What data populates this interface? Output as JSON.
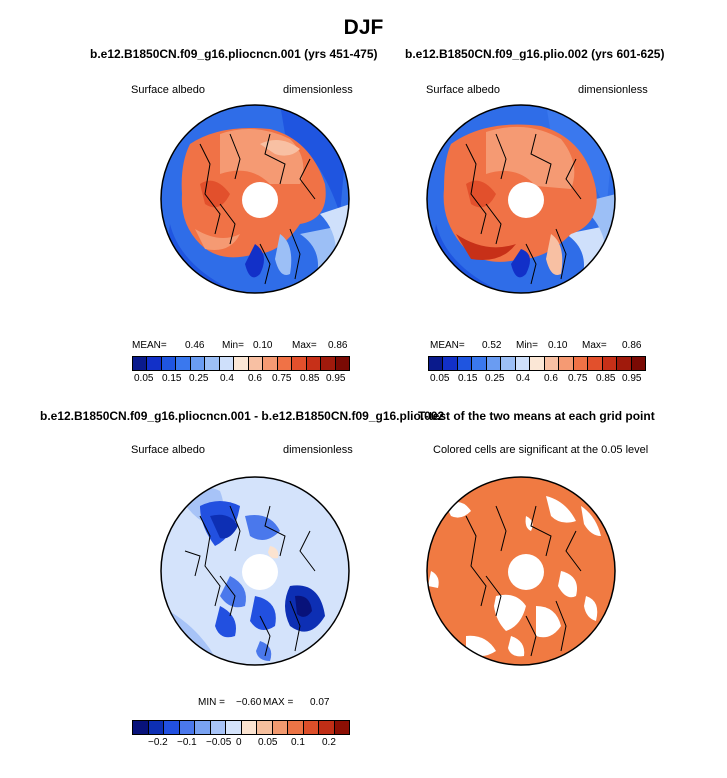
{
  "figure_title": "DJF",
  "panels": [
    {
      "title": "b.e12.B1850CN.f09_g16.pliocncn.001 (yrs 451-475)",
      "left_label": "Surface albedo",
      "right_label": "dimensionless",
      "stats": {
        "mean_label": "MEAN=",
        "mean": "0.46",
        "min_label": "Min=",
        "min": "0.10",
        "max_label": "Max=",
        "max": "0.86"
      },
      "colorbar_ticks": [
        "0.05",
        "0.15",
        "0.25",
        "0.4",
        "0.6",
        "0.75",
        "0.85",
        "0.95"
      ]
    },
    {
      "title": "b.e12.B1850CN.f09_g16.plio.002 (yrs 601-625)",
      "left_label": "Surface albedo",
      "right_label": "dimensionless",
      "stats": {
        "mean_label": "MEAN=",
        "mean": "0.52",
        "min_label": "Min=",
        "min": "0.10",
        "max_label": "Max=",
        "max": "0.86"
      },
      "colorbar_ticks": [
        "0.05",
        "0.15",
        "0.25",
        "0.4",
        "0.6",
        "0.75",
        "0.85",
        "0.95"
      ]
    },
    {
      "title": "b.e12.B1850CN.f09_g16.pliocncn.001 - b.e12.B1850CN.f09_g16.plio.002",
      "left_label": "Surface albedo",
      "right_label": "dimensionless",
      "stats": {
        "min_label": "MIN =",
        "min": "−0.60",
        "max_label": "MAX =",
        "max": "0.07"
      },
      "colorbar_ticks": [
        "−0.2",
        "−0.1",
        "−0.05",
        "0",
        "0.05",
        "0.1",
        "0.2"
      ]
    },
    {
      "title": "T-test of the two means at each grid point",
      "subtitle": "Colored cells are significant at the 0.05 level"
    }
  ],
  "colors": {
    "albedo_scale": [
      "#0a1a8c",
      "#1230c8",
      "#1f55e0",
      "#3a78ee",
      "#6a9cf2",
      "#9cbff6",
      "#cfe0fb",
      "#fbe7d6",
      "#f8c0a3",
      "#f59a73",
      "#f07246",
      "#e2502c",
      "#c73018",
      "#a01a0c",
      "#7a0a04"
    ],
    "diff_scale": [
      "#08127a",
      "#0d2fb4",
      "#2250e0",
      "#4a78ec",
      "#79a2f2",
      "#a7c3f7",
      "#d4e3fb",
      "#fbe3d0",
      "#f6bf9d",
      "#f29a6f",
      "#ec7446",
      "#dd4f2a",
      "#c02e16",
      "#8c0f04"
    ],
    "significance": "#f07a42"
  }
}
